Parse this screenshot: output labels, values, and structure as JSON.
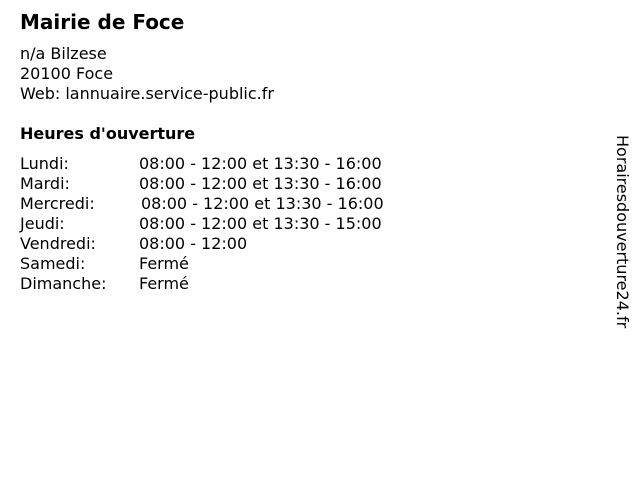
{
  "title": "Mairie de Foce",
  "address": {
    "line1": "n/a Bilzese",
    "line2": "20100 Foce",
    "web": "Web: lannuaire.service-public.fr"
  },
  "hours_title": "Heures d'ouverture",
  "hours": [
    {
      "day": "Lundi:",
      "time": "08:00 - 12:00 et 13:30 - 16:00"
    },
    {
      "day": "Mardi:",
      "time": "08:00 - 12:00 et 13:30 - 16:00"
    },
    {
      "day": "Mercredi:",
      "time": "08:00 - 12:00 et 13:30 - 16:00"
    },
    {
      "day": "Jeudi:",
      "time": "08:00 - 12:00 et 13:30 - 15:00"
    },
    {
      "day": "Vendredi:",
      "time": "08:00 - 12:00"
    },
    {
      "day": "Samedi:",
      "time": "Fermé"
    },
    {
      "day": "Dimanche:",
      "time": "Fermé"
    }
  ],
  "side_label": "Horairesdouverture24.fr"
}
